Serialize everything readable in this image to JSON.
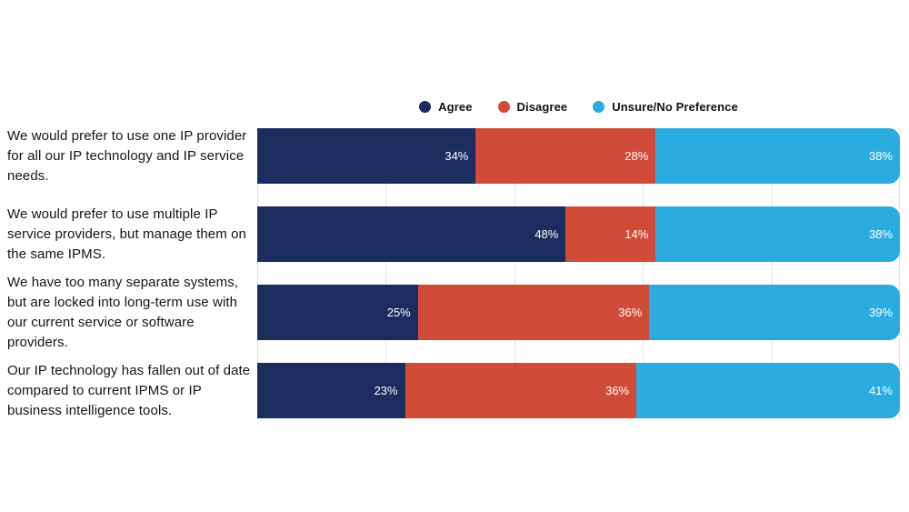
{
  "chart_data": {
    "type": "bar",
    "orientation": "horizontal",
    "stacked": true,
    "title": "",
    "xlabel": "",
    "ylabel": "",
    "xlim": [
      0,
      100
    ],
    "value_format": "percent",
    "gridline_ticks": [
      0,
      20,
      40,
      60,
      80,
      100
    ],
    "legend_position": "top-center",
    "categories": [
      "We would prefer to use one IP provider for all our IP technology and IP service needs.",
      "We would prefer to use multiple IP service providers, but manage them on the same IPMS.",
      "We have too many separate systems, but are locked into long-term use with our current service or software providers.",
      "Our IP technology has fallen out of date compared to current IPMS or IP business intelligence tools."
    ],
    "series": [
      {
        "name": "Agree",
        "color": "#1B2D5F",
        "values": [
          34,
          48,
          25,
          23
        ]
      },
      {
        "name": "Disagree",
        "color": "#D04B38",
        "values": [
          28,
          14,
          36,
          36
        ]
      },
      {
        "name": "Unsure/No Preference",
        "color": "#2BACE0",
        "values": [
          38,
          38,
          39,
          41
        ]
      }
    ],
    "value_labels": [
      [
        "34%",
        "28%",
        "38%"
      ],
      [
        "48%",
        "14%",
        "38%"
      ],
      [
        "25%",
        "36%",
        "39%"
      ],
      [
        "23%",
        "36%",
        "41%"
      ]
    ]
  },
  "colors": {
    "background": "#ffffff",
    "gridline": "#e3e3e7",
    "label_text": "#141419",
    "legend_text": "#121217",
    "bar_value_text": "#ffffff"
  }
}
